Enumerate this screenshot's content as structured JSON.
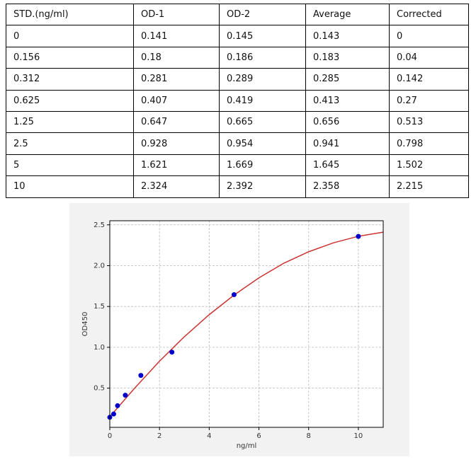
{
  "table": {
    "header": [
      "STD.(ng/ml)",
      "OD-1",
      "OD-2",
      "Average",
      "Corrected"
    ],
    "rows": [
      [
        "0",
        "0.141",
        "0.145",
        "0.143",
        "0"
      ],
      [
        "0.156",
        "0.18",
        "0.186",
        "0.183",
        "0.04"
      ],
      [
        "0.312",
        "0.281",
        "0.289",
        "0.285",
        "0.142"
      ],
      [
        "0.625",
        "0.407",
        "0.419",
        "0.413",
        "0.27"
      ],
      [
        "1.25",
        "0.647",
        "0.665",
        "0.656",
        "0.513"
      ],
      [
        "2.5",
        "0.928",
        "0.954",
        "0.941",
        "0.798"
      ],
      [
        "5",
        "1.621",
        "1.669",
        "1.645",
        "1.502"
      ],
      [
        "10",
        "2.324",
        "2.392",
        "2.358",
        "2.215"
      ]
    ]
  },
  "chart_data": {
    "type": "scatter",
    "xlabel": "ng/ml",
    "ylabel": "OD450",
    "xlim": [
      0,
      11
    ],
    "ylim": [
      0.02,
      2.55
    ],
    "xticks": [
      0,
      2,
      4,
      6,
      8,
      10
    ],
    "yticks": [
      0.5,
      {
        "value": 1,
        "label": "1.0"
      },
      1.5,
      {
        "value": 2,
        "label": "2.0"
      },
      2.5
    ],
    "grid": true,
    "points": {
      "color": "#0000cc",
      "x": [
        0,
        0.156,
        0.312,
        0.625,
        1.25,
        2.5,
        5,
        10
      ],
      "values": [
        0.143,
        0.183,
        0.285,
        0.413,
        0.656,
        0.941,
        1.645,
        2.358
      ]
    },
    "fit": {
      "color": "#cc3333",
      "x": [
        0,
        1,
        2,
        3,
        4,
        5,
        6,
        7,
        8,
        9,
        10,
        11
      ],
      "values": [
        0.15,
        0.5,
        0.83,
        1.13,
        1.4,
        1.64,
        1.85,
        2.03,
        2.17,
        2.28,
        2.36,
        2.41
      ]
    }
  }
}
